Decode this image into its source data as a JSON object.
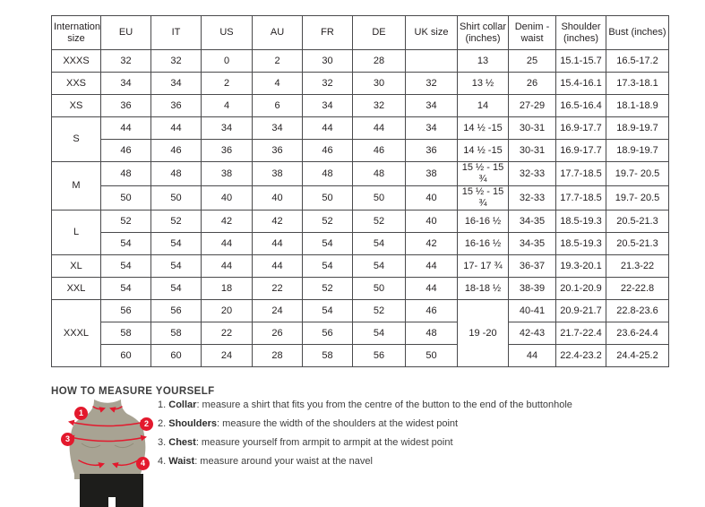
{
  "table": {
    "headers": [
      "International size",
      "EU",
      "IT",
      "US",
      "AU",
      "FR",
      "DE",
      "UK size",
      "Shirt collar (inches)",
      "Denim - waist",
      "Shoulder (inches)",
      "Bust (inches)"
    ],
    "rows": [
      {
        "cells": [
          {
            "t": "XXXS"
          },
          {
            "t": "32"
          },
          {
            "t": "32"
          },
          {
            "t": "0"
          },
          {
            "t": "2"
          },
          {
            "t": "30"
          },
          {
            "t": "28"
          },
          {
            "t": ""
          },
          {
            "t": "13"
          },
          {
            "t": "25"
          },
          {
            "t": "15.1-15.7"
          },
          {
            "t": "16.5-17.2"
          }
        ]
      },
      {
        "cells": [
          {
            "t": "XXS"
          },
          {
            "t": "34"
          },
          {
            "t": "34"
          },
          {
            "t": "2"
          },
          {
            "t": "4"
          },
          {
            "t": "32"
          },
          {
            "t": "30"
          },
          {
            "t": "32"
          },
          {
            "t": "13 ½"
          },
          {
            "t": "26"
          },
          {
            "t": "15.4-16.1"
          },
          {
            "t": "17.3-18.1"
          }
        ]
      },
      {
        "cells": [
          {
            "t": "XS"
          },
          {
            "t": "36"
          },
          {
            "t": "36"
          },
          {
            "t": "4"
          },
          {
            "t": "6"
          },
          {
            "t": "34"
          },
          {
            "t": "32"
          },
          {
            "t": "34"
          },
          {
            "t": "14"
          },
          {
            "t": "27-29"
          },
          {
            "t": "16.5-16.4"
          },
          {
            "t": "18.1-18.9"
          }
        ]
      },
      {
        "cells": [
          {
            "t": "S",
            "rs": 2
          },
          {
            "t": "44"
          },
          {
            "t": "44"
          },
          {
            "t": "34"
          },
          {
            "t": "34"
          },
          {
            "t": "44"
          },
          {
            "t": "44"
          },
          {
            "t": "34"
          },
          {
            "t": "14 ½ -15"
          },
          {
            "t": "30-31"
          },
          {
            "t": "16.9-17.7"
          },
          {
            "t": "18.9-19.7"
          }
        ]
      },
      {
        "cells": [
          {
            "t": "46"
          },
          {
            "t": "46"
          },
          {
            "t": "36"
          },
          {
            "t": "36"
          },
          {
            "t": "46"
          },
          {
            "t": "46"
          },
          {
            "t": "36"
          },
          {
            "t": "14 ½ -15"
          },
          {
            "t": "30-31"
          },
          {
            "t": "16.9-17.7"
          },
          {
            "t": "18.9-19.7"
          }
        ]
      },
      {
        "cells": [
          {
            "t": "M",
            "rs": 2
          },
          {
            "t": "48"
          },
          {
            "t": "48"
          },
          {
            "t": "38"
          },
          {
            "t": "38"
          },
          {
            "t": "48"
          },
          {
            "t": "48"
          },
          {
            "t": "38"
          },
          {
            "t": "15 ½ - 15 ¾"
          },
          {
            "t": "32-33"
          },
          {
            "t": "17.7-18.5"
          },
          {
            "t": "19.7- 20.5"
          }
        ]
      },
      {
        "cells": [
          {
            "t": "50"
          },
          {
            "t": "50"
          },
          {
            "t": "40"
          },
          {
            "t": "40"
          },
          {
            "t": "50"
          },
          {
            "t": "50"
          },
          {
            "t": "40"
          },
          {
            "t": "15 ½ - 15 ¾"
          },
          {
            "t": "32-33"
          },
          {
            "t": "17.7-18.5"
          },
          {
            "t": "19.7- 20.5"
          }
        ]
      },
      {
        "cells": [
          {
            "t": "L",
            "rs": 2
          },
          {
            "t": "52"
          },
          {
            "t": "52"
          },
          {
            "t": "42"
          },
          {
            "t": "42"
          },
          {
            "t": "52"
          },
          {
            "t": "52"
          },
          {
            "t": "40"
          },
          {
            "t": "16-16 ½"
          },
          {
            "t": "34-35"
          },
          {
            "t": "18.5-19.3"
          },
          {
            "t": "20.5-21.3"
          }
        ]
      },
      {
        "cells": [
          {
            "t": "54"
          },
          {
            "t": "54"
          },
          {
            "t": "44"
          },
          {
            "t": "44"
          },
          {
            "t": "54"
          },
          {
            "t": "54"
          },
          {
            "t": "42"
          },
          {
            "t": "16-16 ½"
          },
          {
            "t": "34-35"
          },
          {
            "t": "18.5-19.3"
          },
          {
            "t": "20.5-21.3"
          }
        ]
      },
      {
        "cells": [
          {
            "t": "XL"
          },
          {
            "t": "54"
          },
          {
            "t": "54"
          },
          {
            "t": "44"
          },
          {
            "t": "44"
          },
          {
            "t": "54"
          },
          {
            "t": "54"
          },
          {
            "t": "44"
          },
          {
            "t": "17- 17 ¾"
          },
          {
            "t": "36-37"
          },
          {
            "t": "19.3-20.1"
          },
          {
            "t": "21.3-22"
          }
        ]
      },
      {
        "cells": [
          {
            "t": "XXL"
          },
          {
            "t": "54"
          },
          {
            "t": "54"
          },
          {
            "t": "18"
          },
          {
            "t": "22"
          },
          {
            "t": "52"
          },
          {
            "t": "50"
          },
          {
            "t": "44"
          },
          {
            "t": "18-18 ½"
          },
          {
            "t": "38-39"
          },
          {
            "t": "20.1-20.9"
          },
          {
            "t": "22-22.8"
          }
        ]
      },
      {
        "cells": [
          {
            "t": "XXXL",
            "rs": 3
          },
          {
            "t": "56"
          },
          {
            "t": "56"
          },
          {
            "t": "20"
          },
          {
            "t": "24"
          },
          {
            "t": "54"
          },
          {
            "t": "52"
          },
          {
            "t": "46"
          },
          {
            "t": "19 -20",
            "rs": 3
          },
          {
            "t": "40-41"
          },
          {
            "t": "20.9-21.7"
          },
          {
            "t": "22.8-23.6"
          }
        ]
      },
      {
        "cells": [
          {
            "t": "58"
          },
          {
            "t": "58"
          },
          {
            "t": "22"
          },
          {
            "t": "26"
          },
          {
            "t": "56"
          },
          {
            "t": "54"
          },
          {
            "t": "48"
          },
          {
            "t": "42-43"
          },
          {
            "t": "21.7-22.4"
          },
          {
            "t": "23.6-24.4"
          }
        ]
      },
      {
        "cells": [
          {
            "t": "60"
          },
          {
            "t": "60"
          },
          {
            "t": "24"
          },
          {
            "t": "28"
          },
          {
            "t": "58"
          },
          {
            "t": "56"
          },
          {
            "t": "50"
          },
          {
            "t": "44"
          },
          {
            "t": "22.4-23.2"
          },
          {
            "t": "24.4-25.2"
          }
        ]
      }
    ]
  },
  "measure": {
    "heading": "HOW TO MEASURE YOURSELF",
    "steps": [
      {
        "num": "1.",
        "label": "Collar",
        "text": ": measure a shirt that fits you from the centre of the button to the end of the buttonhole"
      },
      {
        "num": "2.",
        "label": "Shoulders",
        "text": ": measure the width of the shoulders at the widest point"
      },
      {
        "num": "3.",
        "label": "Chest",
        "text": ": measure yourself from armpit to armpit at the widest point"
      },
      {
        "num": "4.",
        "label": "Waist",
        "text": ": measure around your waist at the navel"
      }
    ],
    "figure_badges": [
      "1",
      "2",
      "3",
      "4"
    ]
  },
  "colors": {
    "accent_red": "#e3192d",
    "torso": "#a8a393",
    "shorts": "#1d1d1b",
    "text": "#231f20",
    "table_border": "#4a4a4c"
  }
}
